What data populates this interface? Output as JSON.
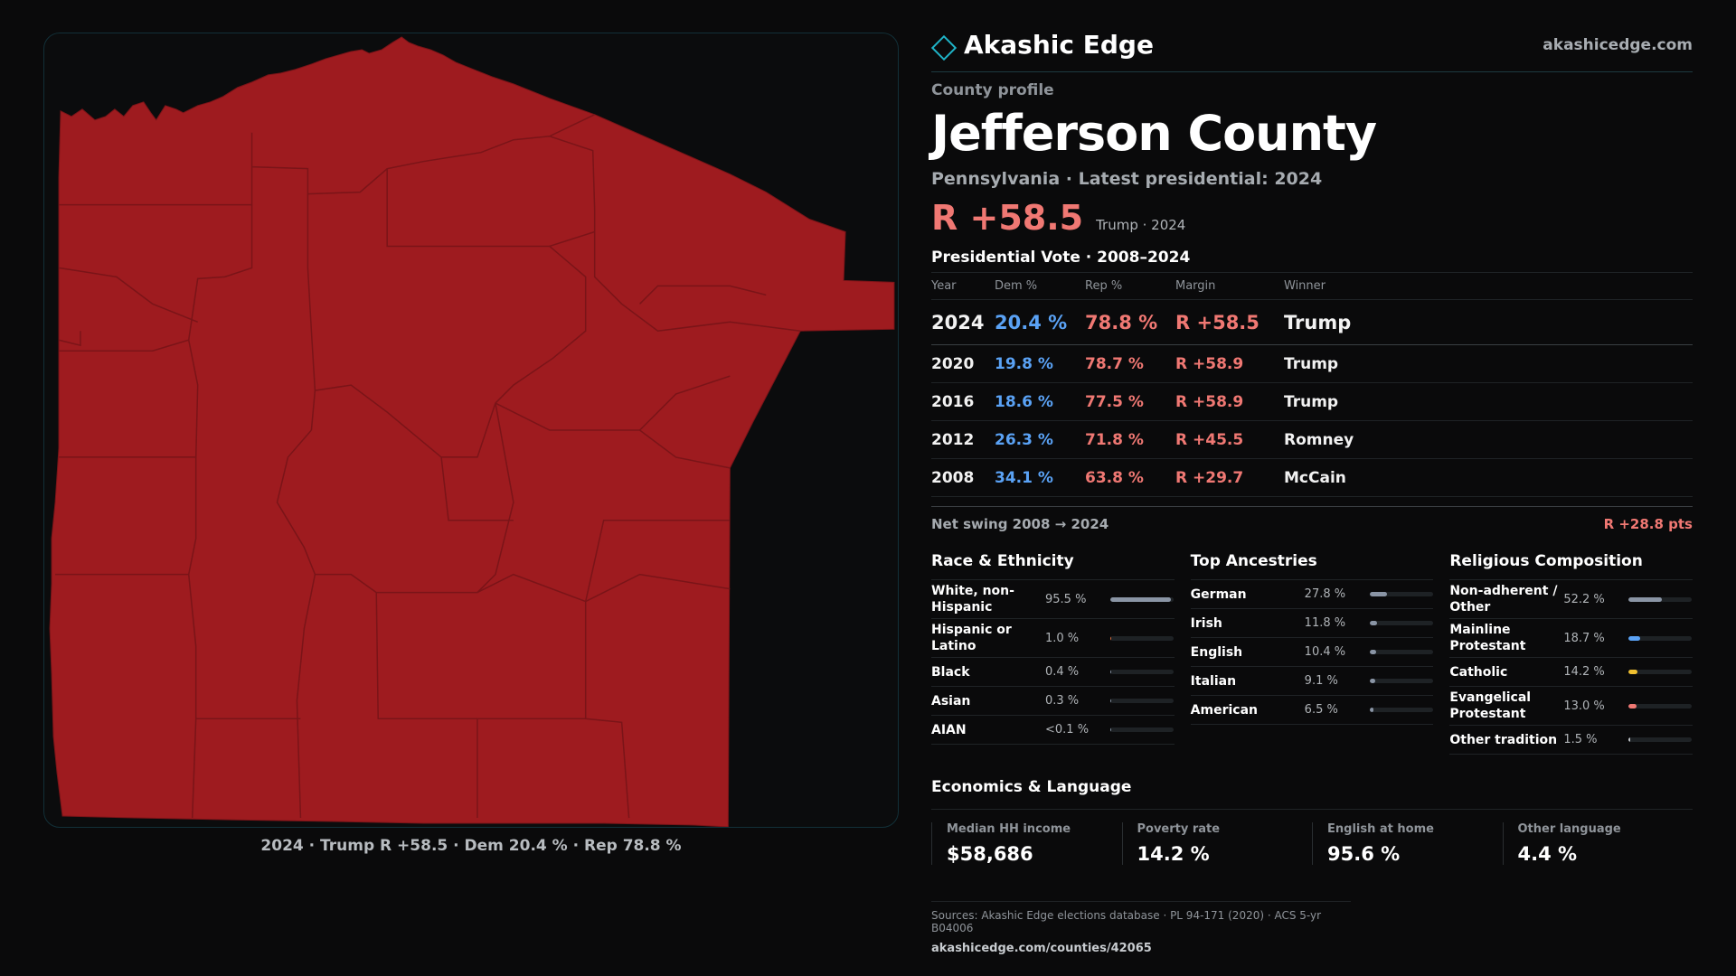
{
  "brand": {
    "name": "Akashic Edge",
    "url": "akashicedge.com"
  },
  "profile": {
    "kicker": "County profile",
    "title": "Jefferson County",
    "subtitle": "Pennsylvania · Latest presidential: 2024",
    "margin": "R +58.5",
    "margin_note": "Trump · 2024"
  },
  "vote": {
    "title": "Presidential Vote · 2008–2024",
    "headers": [
      "Year",
      "Dem %",
      "Rep %",
      "Margin",
      "Winner"
    ],
    "rows": [
      {
        "year": "2024",
        "dem": "20.4 %",
        "rep": "78.8 %",
        "margin": "R +58.5",
        "winner": "Trump"
      },
      {
        "year": "2020",
        "dem": "19.8 %",
        "rep": "78.7 %",
        "margin": "R +58.9",
        "winner": "Trump"
      },
      {
        "year": "2016",
        "dem": "18.6 %",
        "rep": "77.5 %",
        "margin": "R +58.9",
        "winner": "Trump"
      },
      {
        "year": "2012",
        "dem": "26.3 %",
        "rep": "71.8 %",
        "margin": "R +45.5",
        "winner": "Romney"
      },
      {
        "year": "2008",
        "dem": "34.1 %",
        "rep": "63.8 %",
        "margin": "R +29.7",
        "winner": "McCain"
      }
    ],
    "swing_label": "Net swing 2008 → 2024",
    "swing_value": "R +28.8 pts"
  },
  "race": {
    "title": "Race & Ethnicity",
    "items": [
      {
        "name": "White, non-Hispanic",
        "value": "95.5 %",
        "pct": 95.5,
        "color": "#8a95a5"
      },
      {
        "name": "Hispanic or Latino",
        "value": "1.0 %",
        "pct": 1.0,
        "color": "#e07040"
      },
      {
        "name": "Black",
        "value": "0.4 %",
        "pct": 0.4,
        "color": "#8a95a5"
      },
      {
        "name": "Asian",
        "value": "0.3 %",
        "pct": 0.3,
        "color": "#8a95a5"
      },
      {
        "name": "AIAN",
        "value": "<0.1 %",
        "pct": 0.05,
        "color": "#8a95a5"
      }
    ]
  },
  "ancestry": {
    "title": "Top Ancestries",
    "items": [
      {
        "name": "German",
        "value": "27.8 %",
        "pct": 27.8,
        "color": "#8a95a5"
      },
      {
        "name": "Irish",
        "value": "11.8 %",
        "pct": 11.8,
        "color": "#8a95a5"
      },
      {
        "name": "English",
        "value": "10.4 %",
        "pct": 10.4,
        "color": "#8a95a5"
      },
      {
        "name": "Italian",
        "value": "9.1 %",
        "pct": 9.1,
        "color": "#8a95a5"
      },
      {
        "name": "American",
        "value": "6.5 %",
        "pct": 6.5,
        "color": "#8a95a5"
      }
    ]
  },
  "religion": {
    "title": "Religious Composition",
    "items": [
      {
        "name": "Non-adherent / Other",
        "value": "52.2 %",
        "pct": 52.2,
        "color": "#8a95a5"
      },
      {
        "name": "Mainline Protestant",
        "value": "18.7 %",
        "pct": 18.7,
        "color": "#5aa2f5"
      },
      {
        "name": "Catholic",
        "value": "14.2 %",
        "pct": 14.2,
        "color": "#f0c030"
      },
      {
        "name": "Evangelical Protestant",
        "value": "13.0 %",
        "pct": 13.0,
        "color": "#f07873"
      },
      {
        "name": "Other tradition",
        "value": "1.5 %",
        "pct": 1.5,
        "color": "#c0c4c8"
      }
    ]
  },
  "economics": {
    "title": "Economics & Language",
    "cards": [
      {
        "label": "Median HH income",
        "value": "$58,686"
      },
      {
        "label": "Poverty rate",
        "value": "14.2 %"
      },
      {
        "label": "English at home",
        "value": "95.6 %"
      },
      {
        "label": "Other language",
        "value": "4.4 %"
      }
    ]
  },
  "map": {
    "caption": "2024 · Trump R +58.5 · Dem 20.4 % · Rep 78.8 %",
    "fill": "#9e1b1f",
    "stroke": "#7a1418"
  },
  "sources": {
    "line": "Sources: Akashic Edge elections database · PL 94-171 (2020) · ACS 5-yr B04006",
    "url": "akashicedge.com/counties/42065"
  }
}
